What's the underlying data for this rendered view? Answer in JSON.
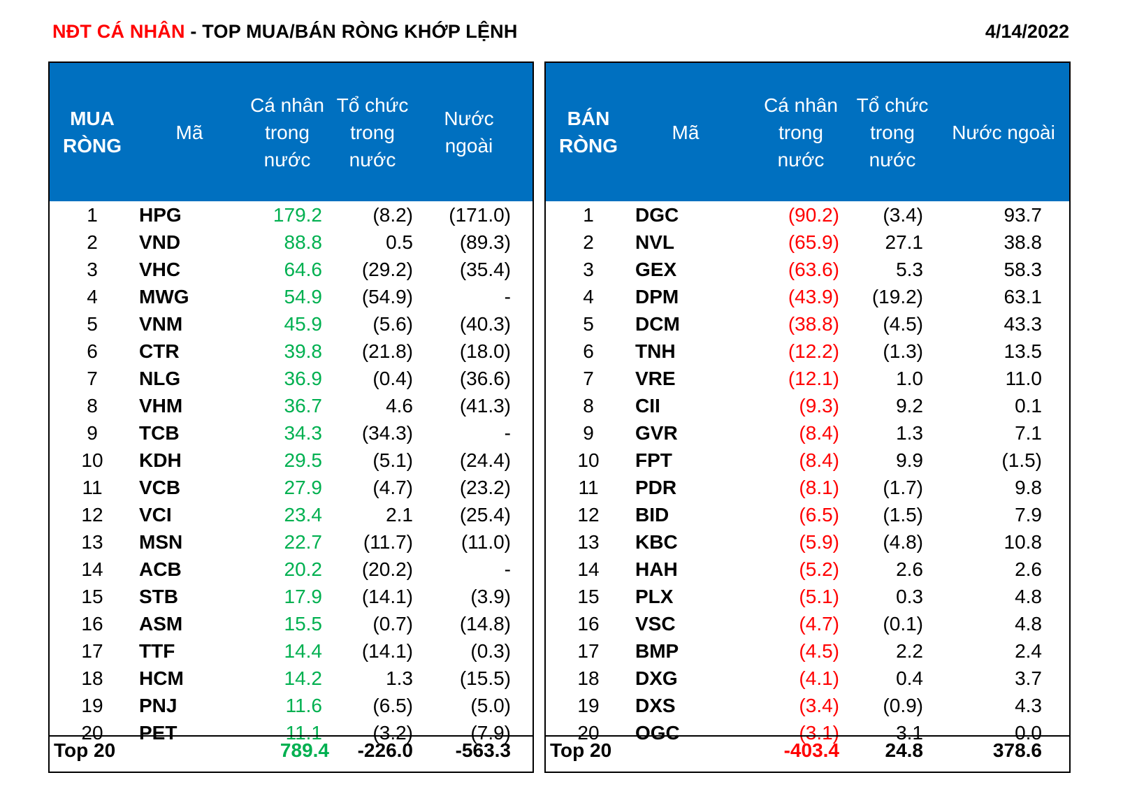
{
  "header": {
    "title_red": "NĐT CÁ NHÂN",
    "title_rest": " - TOP MUA/BÁN RÒNG KHỚP LỆNH",
    "date": "4/14/2022"
  },
  "chart_data": {
    "type": "table",
    "tables": [
      {
        "headers": [
          "MUA RÒNG",
          "Mã",
          "Cá nhân trong nước",
          "Tổ chức trong nước",
          "Nước ngoài"
        ],
        "rows": [
          {
            "rank": "1",
            "ticker": "HPG",
            "ca_nhan": "179.2",
            "to_chuc": "(8.2)",
            "nuoc_ngoai": "(171.0)"
          },
          {
            "rank": "2",
            "ticker": "VND",
            "ca_nhan": "88.8",
            "to_chuc": "0.5",
            "nuoc_ngoai": "(89.3)"
          },
          {
            "rank": "3",
            "ticker": "VHC",
            "ca_nhan": "64.6",
            "to_chuc": "(29.2)",
            "nuoc_ngoai": "(35.4)"
          },
          {
            "rank": "4",
            "ticker": "MWG",
            "ca_nhan": "54.9",
            "to_chuc": "(54.9)",
            "nuoc_ngoai": "-"
          },
          {
            "rank": "5",
            "ticker": "VNM",
            "ca_nhan": "45.9",
            "to_chuc": "(5.6)",
            "nuoc_ngoai": "(40.3)"
          },
          {
            "rank": "6",
            "ticker": "CTR",
            "ca_nhan": "39.8",
            "to_chuc": "(21.8)",
            "nuoc_ngoai": "(18.0)"
          },
          {
            "rank": "7",
            "ticker": "NLG",
            "ca_nhan": "36.9",
            "to_chuc": "(0.4)",
            "nuoc_ngoai": "(36.6)"
          },
          {
            "rank": "8",
            "ticker": "VHM",
            "ca_nhan": "36.7",
            "to_chuc": "4.6",
            "nuoc_ngoai": "(41.3)"
          },
          {
            "rank": "9",
            "ticker": "TCB",
            "ca_nhan": "34.3",
            "to_chuc": "(34.3)",
            "nuoc_ngoai": "-"
          },
          {
            "rank": "10",
            "ticker": "KDH",
            "ca_nhan": "29.5",
            "to_chuc": "(5.1)",
            "nuoc_ngoai": "(24.4)"
          },
          {
            "rank": "11",
            "ticker": "VCB",
            "ca_nhan": "27.9",
            "to_chuc": "(4.7)",
            "nuoc_ngoai": "(23.2)"
          },
          {
            "rank": "12",
            "ticker": "VCI",
            "ca_nhan": "23.4",
            "to_chuc": "2.1",
            "nuoc_ngoai": "(25.4)"
          },
          {
            "rank": "13",
            "ticker": "MSN",
            "ca_nhan": "22.7",
            "to_chuc": "(11.7)",
            "nuoc_ngoai": "(11.0)"
          },
          {
            "rank": "14",
            "ticker": "ACB",
            "ca_nhan": "20.2",
            "to_chuc": "(20.2)",
            "nuoc_ngoai": "-"
          },
          {
            "rank": "15",
            "ticker": "STB",
            "ca_nhan": "17.9",
            "to_chuc": "(14.1)",
            "nuoc_ngoai": "(3.9)"
          },
          {
            "rank": "16",
            "ticker": "ASM",
            "ca_nhan": "15.5",
            "to_chuc": "(0.7)",
            "nuoc_ngoai": "(14.8)"
          },
          {
            "rank": "17",
            "ticker": "TTF",
            "ca_nhan": "14.4",
            "to_chuc": "(14.1)",
            "nuoc_ngoai": "(0.3)"
          },
          {
            "rank": "18",
            "ticker": "HCM",
            "ca_nhan": "14.2",
            "to_chuc": "1.3",
            "nuoc_ngoai": "(15.5)"
          },
          {
            "rank": "19",
            "ticker": "PNJ",
            "ca_nhan": "11.6",
            "to_chuc": "(6.5)",
            "nuoc_ngoai": "(5.0)"
          },
          {
            "rank": "20",
            "ticker": "PET",
            "ca_nhan": "11.1",
            "to_chuc": "(3.2)",
            "nuoc_ngoai": "(7.9)"
          }
        ],
        "total": {
          "label": "Top 20",
          "ca_nhan": "789.4",
          "to_chuc": "-226.0",
          "nuoc_ngoai": "-563.3"
        }
      },
      {
        "headers": [
          "BÁN RÒNG",
          "Mã",
          "Cá nhân trong nước",
          "Tổ chức trong nước",
          "Nước ngoài"
        ],
        "rows": [
          {
            "rank": "1",
            "ticker": "DGC",
            "ca_nhan": "(90.2)",
            "to_chuc": "(3.4)",
            "nuoc_ngoai": "93.7"
          },
          {
            "rank": "2",
            "ticker": "NVL",
            "ca_nhan": "(65.9)",
            "to_chuc": "27.1",
            "nuoc_ngoai": "38.8"
          },
          {
            "rank": "3",
            "ticker": "GEX",
            "ca_nhan": "(63.6)",
            "to_chuc": "5.3",
            "nuoc_ngoai": "58.3"
          },
          {
            "rank": "4",
            "ticker": "DPM",
            "ca_nhan": "(43.9)",
            "to_chuc": "(19.2)",
            "nuoc_ngoai": "63.1"
          },
          {
            "rank": "5",
            "ticker": "DCM",
            "ca_nhan": "(38.8)",
            "to_chuc": "(4.5)",
            "nuoc_ngoai": "43.3"
          },
          {
            "rank": "6",
            "ticker": "TNH",
            "ca_nhan": "(12.2)",
            "to_chuc": "(1.3)",
            "nuoc_ngoai": "13.5"
          },
          {
            "rank": "7",
            "ticker": "VRE",
            "ca_nhan": "(12.1)",
            "to_chuc": "1.0",
            "nuoc_ngoai": "11.0"
          },
          {
            "rank": "8",
            "ticker": "CII",
            "ca_nhan": "(9.3)",
            "to_chuc": "9.2",
            "nuoc_ngoai": "0.1"
          },
          {
            "rank": "9",
            "ticker": "GVR",
            "ca_nhan": "(8.4)",
            "to_chuc": "1.3",
            "nuoc_ngoai": "7.1"
          },
          {
            "rank": "10",
            "ticker": "FPT",
            "ca_nhan": "(8.4)",
            "to_chuc": "9.9",
            "nuoc_ngoai": "(1.5)"
          },
          {
            "rank": "11",
            "ticker": "PDR",
            "ca_nhan": "(8.1)",
            "to_chuc": "(1.7)",
            "nuoc_ngoai": "9.8"
          },
          {
            "rank": "12",
            "ticker": "BID",
            "ca_nhan": "(6.5)",
            "to_chuc": "(1.5)",
            "nuoc_ngoai": "7.9"
          },
          {
            "rank": "13",
            "ticker": "KBC",
            "ca_nhan": "(5.9)",
            "to_chuc": "(4.8)",
            "nuoc_ngoai": "10.8"
          },
          {
            "rank": "14",
            "ticker": "HAH",
            "ca_nhan": "(5.2)",
            "to_chuc": "2.6",
            "nuoc_ngoai": "2.6"
          },
          {
            "rank": "15",
            "ticker": "PLX",
            "ca_nhan": "(5.1)",
            "to_chuc": "0.3",
            "nuoc_ngoai": "4.8"
          },
          {
            "rank": "16",
            "ticker": "VSC",
            "ca_nhan": "(4.7)",
            "to_chuc": "(0.1)",
            "nuoc_ngoai": "4.8"
          },
          {
            "rank": "17",
            "ticker": "BMP",
            "ca_nhan": "(4.5)",
            "to_chuc": "2.2",
            "nuoc_ngoai": "2.4"
          },
          {
            "rank": "18",
            "ticker": "DXG",
            "ca_nhan": "(4.1)",
            "to_chuc": "0.4",
            "nuoc_ngoai": "3.7"
          },
          {
            "rank": "19",
            "ticker": "DXS",
            "ca_nhan": "(3.4)",
            "to_chuc": "(0.9)",
            "nuoc_ngoai": "4.3"
          },
          {
            "rank": "20",
            "ticker": "OGC",
            "ca_nhan": "(3.1)",
            "to_chuc": "3.1",
            "nuoc_ngoai": "0.0"
          }
        ],
        "total": {
          "label": "Top 20",
          "ca_nhan": "-403.4",
          "to_chuc": "24.8",
          "nuoc_ngoai": "378.6"
        }
      }
    ]
  },
  "colors": {
    "header_bg": "#0070c0",
    "buy_value": "#00b050",
    "sell_value": "#ff0000",
    "title_accent": "#ff0000"
  }
}
